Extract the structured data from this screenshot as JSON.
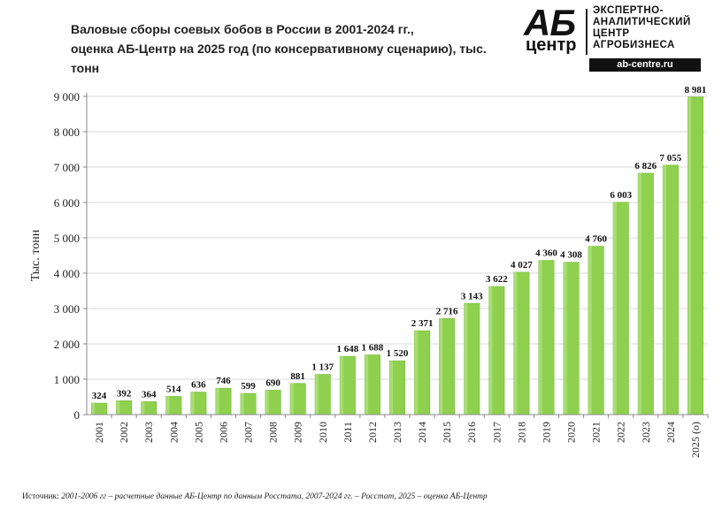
{
  "header": {
    "title_line1": "Валовые сборы соевых бобов в России в 2001-2024 гг.,",
    "title_line2": "оценка АБ-Центр на 2025 год (по консервативному сценарию), тыс. тонн"
  },
  "logo": {
    "ab": "АБ",
    "centr": "центр",
    "line1": "ЭКСПЕРТНО-",
    "line2": "АНАЛИТИЧЕСКИЙ",
    "line3": "ЦЕНТР",
    "line4": "АГРОБИЗНЕСА",
    "url": "ab-centre.ru"
  },
  "footer": {
    "source_label": "Источник:",
    "source_text": "2001-2006 гг – расчетные данные АБ-Центр по данным Росстата, 2007-2024 гг. – Росстат, 2025 – оценка АБ-Центр"
  },
  "colors": {
    "bar": "#8fd14f",
    "bar_dark": "#74b83a",
    "grid": "#d9d9d9",
    "axis": "#888888"
  },
  "chart_data": {
    "type": "bar",
    "title": "Валовые сборы соевых бобов в России в 2001-2024 гг., оценка АБ-Центр на 2025 год (по консервативному сценарию), тыс. тонн",
    "xlabel": "",
    "ylabel": "Тыс. тонн",
    "ylim": [
      0,
      9000
    ],
    "yticks": [
      0,
      1000,
      2000,
      3000,
      4000,
      5000,
      6000,
      7000,
      8000,
      9000
    ],
    "ytick_labels": [
      "0",
      "1 000",
      "2 000",
      "3 000",
      "4 000",
      "5 000",
      "6 000",
      "7 000",
      "8 000",
      "9 000"
    ],
    "grid": true,
    "categories": [
      "2001",
      "2002",
      "2003",
      "2004",
      "2005",
      "2006",
      "2007",
      "2008",
      "2009",
      "2010",
      "2011",
      "2012",
      "2013",
      "2014",
      "2015",
      "2016",
      "2017",
      "2018",
      "2019",
      "2020",
      "2021",
      "2022",
      "2023",
      "2024",
      "2025 (о)"
    ],
    "values": [
      324,
      392,
      364,
      514,
      636,
      746,
      599,
      690,
      881,
      1137,
      1648,
      1688,
      1520,
      2371,
      2716,
      3143,
      3622,
      4027,
      4360,
      4308,
      4760,
      6003,
      6826,
      7055,
      8981
    ],
    "value_labels": [
      "324",
      "392",
      "364",
      "514",
      "636",
      "746",
      "599",
      "690",
      "881",
      "1 137",
      "1 648",
      "1 688",
      "1 520",
      "2 371",
      "2 716",
      "3 143",
      "3 622",
      "4 027",
      "4 360",
      "4 308",
      "4 760",
      "6 003",
      "6 826",
      "7 055",
      "8 981"
    ]
  }
}
